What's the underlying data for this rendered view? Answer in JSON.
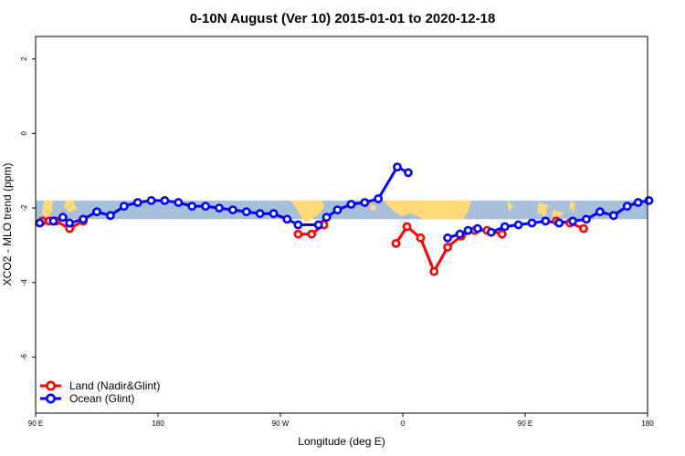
{
  "chart_data": {
    "type": "line",
    "title": "0-10N August (Ver 10)   2015-01-01 to 2020-12-18",
    "xlabel": "Longitude (deg E)",
    "ylabel": "XCO2 - MLO trend (ppm)",
    "x_tick_labels": [
      "90 E",
      "180",
      "90 W",
      "0",
      "90 E",
      "180"
    ],
    "x_ticks": [
      90,
      180,
      270,
      360,
      450,
      540
    ],
    "xlim": [
      90,
      540
    ],
    "y_tick_labels": [
      "2",
      "0",
      "-2",
      "-4",
      "-6"
    ],
    "y_ticks": [
      2,
      0,
      -2,
      -4,
      -6
    ],
    "ylim": [
      -7.5,
      2.6
    ],
    "grid": false,
    "legend_position": "bottom-left",
    "map_band": {
      "ymin": -2.3,
      "ymax": -1.8,
      "ocean_color": "#a8bfdc",
      "land_color": "#ffd977"
    },
    "series": [
      {
        "name": "Land (Nadir&Glint)",
        "color": "#ff0000",
        "points": [
          [
            95,
            -2.35
          ],
          [
            100,
            -2.35
          ],
          [
            105,
            -2.35
          ],
          [
            115,
            -2.55
          ],
          [
            125,
            -2.35
          ],
          [
            283,
            -2.7
          ],
          [
            293,
            -2.7
          ],
          [
            302,
            -2.45
          ],
          [
            355,
            -2.95
          ],
          [
            363,
            -2.5
          ],
          [
            373,
            -2.8
          ],
          [
            383,
            -3.7
          ],
          [
            393,
            -3.05
          ],
          [
            403,
            -2.75
          ],
          [
            413,
            -2.6
          ],
          [
            422,
            -2.6
          ],
          [
            433,
            -2.7
          ],
          [
            473,
            -2.35
          ],
          [
            483,
            -2.4
          ],
          [
            493,
            -2.55
          ]
        ]
      },
      {
        "name": "Ocean (Glint)",
        "color": "#0000ff",
        "points": [
          [
            93,
            -2.4
          ],
          [
            103,
            -2.35
          ],
          [
            110,
            -2.25
          ],
          [
            115,
            -2.4
          ],
          [
            125,
            -2.3
          ],
          [
            135,
            -2.1
          ],
          [
            145,
            -2.2
          ],
          [
            155,
            -1.95
          ],
          [
            165,
            -1.85
          ],
          [
            175,
            -1.8
          ],
          [
            185,
            -1.8
          ],
          [
            195,
            -1.85
          ],
          [
            205,
            -1.95
          ],
          [
            215,
            -1.95
          ],
          [
            225,
            -2.0
          ],
          [
            235,
            -2.05
          ],
          [
            245,
            -2.1
          ],
          [
            255,
            -2.15
          ],
          [
            265,
            -2.15
          ],
          [
            275,
            -2.3
          ],
          [
            283,
            -2.45
          ],
          [
            298,
            -2.45
          ],
          [
            304,
            -2.25
          ],
          [
            312,
            -2.05
          ],
          [
            322,
            -1.9
          ],
          [
            332,
            -1.85
          ],
          [
            342,
            -1.75
          ],
          [
            356,
            -0.9
          ],
          [
            364,
            -1.05
          ],
          [
            393,
            -2.8
          ],
          [
            402,
            -2.7
          ],
          [
            408,
            -2.6
          ],
          [
            415,
            -2.55
          ],
          [
            425,
            -2.65
          ],
          [
            435,
            -2.5
          ],
          [
            445,
            -2.45
          ],
          [
            455,
            -2.4
          ],
          [
            465,
            -2.35
          ],
          [
            475,
            -2.4
          ],
          [
            485,
            -2.35
          ],
          [
            495,
            -2.3
          ],
          [
            505,
            -2.1
          ],
          [
            515,
            -2.2
          ],
          [
            525,
            -1.95
          ],
          [
            533,
            -1.85
          ],
          [
            541,
            -1.8
          ]
        ]
      }
    ]
  }
}
